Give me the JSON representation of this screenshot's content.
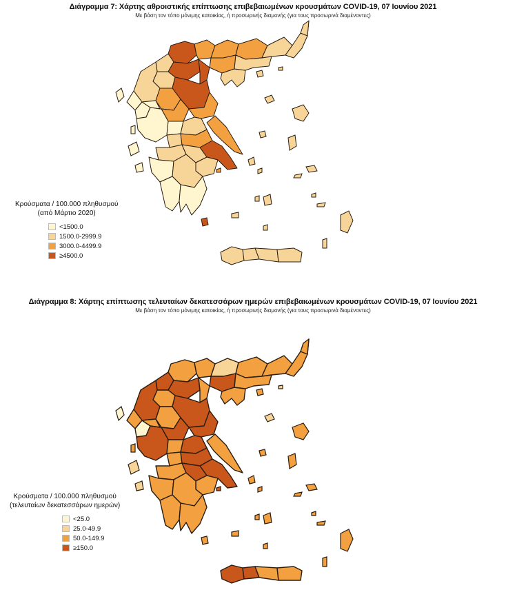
{
  "colors": {
    "low": "#fff6cf",
    "mid_low": "#f7d598",
    "mid_high": "#f2a040",
    "high": "#c9561a",
    "border": "#2a1d12"
  },
  "map1": {
    "title": "Διάγραμμα 7: Χάρτης αθροιστικής επίπτωσης επιβεβαιωμένων κρουσμάτων COVID-19, 07 Ιουνίου 2021",
    "subtitle": "Με βάση τον τόπο μόνιμης κατοικίας, ή προσωρινής διαμονής (για τους προσωρινά διαμένοντες)",
    "legend": {
      "title_line1": "Κρούσματα / 100.000 πληθυσμού",
      "title_line2": "(από Μάρτιο 2020)",
      "items": [
        {
          "label": "<1500.0",
          "color": "#fff6cf"
        },
        {
          "label": "1500.0-2999.9",
          "color": "#f7d598"
        },
        {
          "label": "3000.0-4499.9",
          "color": "#f2a040"
        },
        {
          "label": "≥4500.0",
          "color": "#c9561a"
        }
      ]
    }
  },
  "map2": {
    "title": "Διάγραμμα 8: Χάρτης επίπτωσης τελευταίων δεκατεσσάρων ημερών επιβεβαιωμένων κρουσμάτων COVID-19, 07 Ιουνίου 2021",
    "subtitle": "Με βάση τον τόπο μόνιμης κατοικίας, ή προσωρινής διαμονής (για τους προσωρινά διαμένοντες)",
    "legend": {
      "title_line1": "Κρούσματα / 100.000 πληθυσμού",
      "title_line2": "(τελευταίων δεκατεσσάρων ημερών)",
      "items": [
        {
          "label": "<25.0",
          "color": "#fff6cf"
        },
        {
          "label": "25.0-49.9",
          "color": "#f7d598"
        },
        {
          "label": "50.0-149.9",
          "color": "#f2a040"
        },
        {
          "label": "≥150.0",
          "color": "#c9561a"
        }
      ]
    }
  }
}
